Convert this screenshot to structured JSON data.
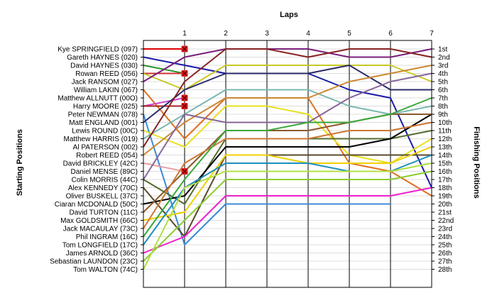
{
  "chart_data": {
    "type": "line",
    "title": "",
    "xlabel": "Laps",
    "ylabel_left": "Starting Positions",
    "ylabel_right": "Finishing Positions",
    "x_ticks": [
      1,
      2,
      3,
      4,
      5,
      6,
      7
    ],
    "xlim": [
      0,
      7
    ],
    "ylim": [
      1,
      28
    ],
    "y_inverted": true,
    "grid": true,
    "colors": {
      "retired_marker": "#dd2222",
      "grid": "#dcdcdc",
      "plot_border": "#000000"
    },
    "drivers": [
      "Kye SPRINGFIELD (097)",
      "Gareth HAYNES (020)",
      "David HAYNES (030)",
      "Rowan REED (056)",
      "Jack RANSOM (027)",
      "William LAKIN (067)",
      "Matthew ALLNUTT (00O)",
      "Harry MOORE (025)",
      "Peter NEWMAN (078)",
      "Matt ENGLAND (001)",
      "Lewis ROUND (00C)",
      "Matthew HARRIS (019)",
      "Al PATERSON (002)",
      "Robert REED (054)",
      "David BRICKLEY (42C)",
      "Daniel MENSE (89C)",
      "Colin MORRIS (44C)",
      "Alex KENNEDY (70C)",
      "Oliver BUSKELL (37C)",
      "Ciaran MCDONALD (50C)",
      "David TURTON (11C)",
      "Max GOLDSMITH (66C)",
      "Jack MACAULAY (73C)",
      "Phil INGRAM (16C)",
      "Tom LONGFIELD (17C)",
      "James ARNOLD (36C)",
      "Sebastian LAUNDON (23C)",
      "Tom WALTON (74C)"
    ],
    "finishing_labels": [
      "1st",
      "2nd",
      "3rd",
      "4th",
      "5th",
      "6th",
      "7th",
      "8th",
      "9th",
      "10th",
      "11th",
      "12th",
      "13th",
      "14th",
      "15th",
      "16th",
      "17th",
      "18th",
      "19th",
      "20th",
      "21st",
      "22nd",
      "23rd",
      "24th",
      "25th",
      "26th",
      "27th",
      "28th"
    ],
    "series": [
      {
        "color": "#dd0000",
        "positions": [
          1,
          1
        ],
        "retired_after_lap": 1
      },
      {
        "color": "#1a1aa8",
        "positions": [
          2,
          3,
          4,
          4,
          4,
          6,
          7,
          18
        ]
      },
      {
        "color": "#2a962a",
        "positions": [
          3,
          4
        ],
        "retired_after_lap": 1
      },
      {
        "color": "#cc3333",
        "positions": [
          4,
          4
        ],
        "retired_after_lap": 1
      },
      {
        "color": "#c8c828",
        "positions": [
          4,
          6,
          3,
          3,
          3,
          3,
          3,
          5
        ]
      },
      {
        "color": "#7a1e7a",
        "positions": [
          5,
          2,
          1,
          1,
          1,
          2,
          2,
          1
        ]
      },
      {
        "color": "#e07020",
        "positions": [
          6,
          12,
          7,
          7,
          7,
          15,
          16,
          19
        ]
      },
      {
        "color": "#cc44cc",
        "positions": [
          8,
          7
        ],
        "retired_after_lap": 1
      },
      {
        "color": "#aa2020",
        "positions": [
          8,
          8
        ],
        "retired_after_lap": 1
      },
      {
        "color": "#3a8ad8",
        "positions": [
          9,
          25,
          20,
          20,
          20,
          20,
          20
        ]
      },
      {
        "color": "#2a2a6a",
        "positions": [
          10,
          6,
          4,
          4,
          4,
          3,
          6,
          6
        ]
      },
      {
        "color": "#e8e020",
        "positions": [
          11,
          13,
          8,
          8,
          9,
          14,
          15,
          12
        ]
      },
      {
        "color": "#7ab8b0",
        "positions": [
          12,
          9,
          6,
          6,
          6,
          8,
          9,
          8
        ]
      },
      {
        "color": "#882222",
        "positions": [
          13,
          5,
          1,
          1,
          2,
          1,
          1,
          2
        ]
      },
      {
        "color": "#cc8833",
        "positions": [
          14,
          10,
          7,
          7,
          7,
          5,
          4,
          3
        ]
      },
      {
        "color": "#e8a0a0",
        "positions": [
          15,
          16
        ],
        "retired_after_lap": 1
      },
      {
        "color": "#556b2f",
        "positions": [
          17,
          20,
          12,
          12,
          12,
          12,
          12,
          11
        ]
      },
      {
        "color": "#886699",
        "positions": [
          17,
          9,
          10,
          10,
          10,
          7,
          5,
          4
        ]
      },
      {
        "color": "#5a4a2a",
        "positions": [
          18,
          24,
          14,
          14,
          14,
          14,
          14,
          14
        ]
      },
      {
        "color": "#000000",
        "positions": [
          20,
          19,
          13,
          13,
          13,
          13,
          12,
          9
        ]
      },
      {
        "color": "#8b5a2b",
        "positions": [
          21,
          16,
          11,
          11,
          11,
          10,
          9,
          9
        ]
      },
      {
        "color": "#f0d000",
        "positions": [
          22,
          21,
          14,
          14,
          15,
          15,
          15,
          13
        ]
      },
      {
        "color": "#cc7733",
        "positions": [
          23,
          15,
          12,
          12,
          12,
          11,
          11,
          10
        ]
      },
      {
        "color": "#3aa83a",
        "positions": [
          24,
          17,
          11,
          11,
          10,
          10,
          9,
          7
        ]
      },
      {
        "color": "#1f8fbf",
        "positions": [
          25,
          18,
          15,
          15,
          15,
          16,
          16,
          14
        ]
      },
      {
        "color": "#ee22cc",
        "positions": [
          26,
          24,
          19,
          19,
          19,
          19,
          19,
          18
        ]
      },
      {
        "color": "#8ccc30",
        "positions": [
          27,
          22,
          17,
          17,
          17,
          17,
          17,
          16
        ]
      },
      {
        "color": "#b0e040",
        "positions": [
          28,
          18,
          16,
          16,
          16,
          16,
          16,
          15
        ]
      }
    ]
  }
}
